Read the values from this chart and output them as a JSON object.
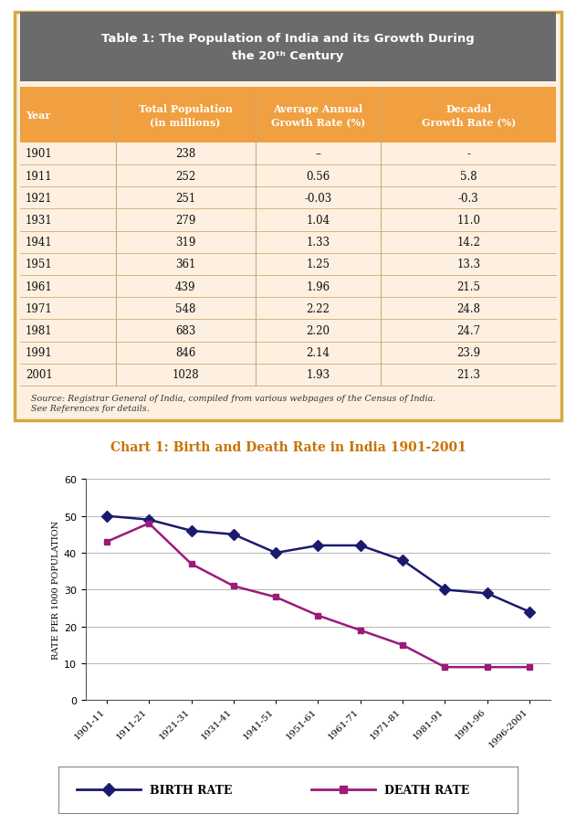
{
  "title_header_bg": "#6b6b6b",
  "title_header_fg": "#ffffff",
  "table_bg": "#fdf0e0",
  "table_border": "#d4a843",
  "header_bg": "#f0a040",
  "header_fg": "#ffffff",
  "col_headers": [
    "Year",
    "Total Population\n(in millions)",
    "Average Annual\nGrowth Rate (%)",
    "Decadal\nGrowth Rate (%)"
  ],
  "rows": [
    [
      "1901",
      "238",
      "–",
      "-"
    ],
    [
      "1911",
      "252",
      "0.56",
      "5.8"
    ],
    [
      "1921",
      "251",
      "-0.03",
      "-0.3"
    ],
    [
      "1931",
      "279",
      "1.04",
      "11.0"
    ],
    [
      "1941",
      "319",
      "1.33",
      "14.2"
    ],
    [
      "1951",
      "361",
      "1.25",
      "13.3"
    ],
    [
      "1961",
      "439",
      "1.96",
      "21.5"
    ],
    [
      "1971",
      "548",
      "2.22",
      "24.8"
    ],
    [
      "1981",
      "683",
      "2.20",
      "24.7"
    ],
    [
      "1991",
      "846",
      "2.14",
      "23.9"
    ],
    [
      "2001",
      "1028",
      "1.93",
      "21.3"
    ]
  ],
  "source_text": "Source: Registrar General of India, compiled from various webpages of the Census of India.\nSee References for details.",
  "chart_title": "Chart 1: Birth and Death Rate in India 1901-2001",
  "chart_title_color": "#c87000",
  "chart_bg": "#ffffff",
  "outer_bg": "#ffffff",
  "x_labels": [
    "1901-11",
    "1911-21",
    "1921-31",
    "1931-41",
    "1941-51",
    "1951-61",
    "1961-71",
    "1971-81",
    "1981-91",
    "1991-96",
    "1996-2001"
  ],
  "birth_rate": [
    50,
    49,
    46,
    45,
    40,
    42,
    42,
    38,
    30,
    29,
    24
  ],
  "death_rate": [
    43,
    48,
    37,
    31,
    28,
    23,
    19,
    15,
    9,
    9,
    9
  ],
  "birth_color": "#1a1a6e",
  "death_color": "#9b1a7a",
  "ylim": [
    0,
    60
  ],
  "yticks": [
    0,
    10,
    20,
    30,
    40,
    50,
    60
  ],
  "ylabel": "RATE PER 1000 POPULATION",
  "legend_birth": "BIRTH RATE",
  "legend_death": "DEATH RATE",
  "grid_color": "#aaaaaa",
  "row_divider_color": "#ccaa77",
  "col_divider_color": "#ccaa77"
}
